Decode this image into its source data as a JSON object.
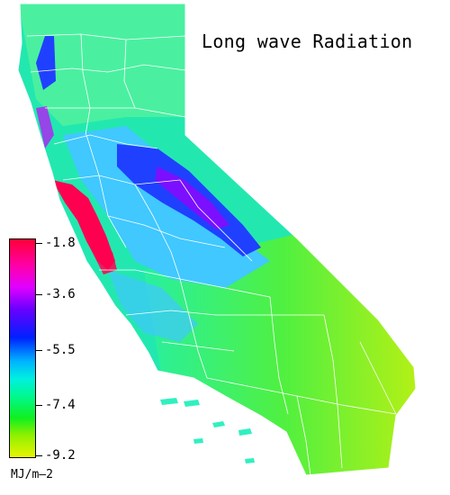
{
  "map": {
    "title": "Long wave Radiation",
    "region_shape": "california-state",
    "colors": {
      "dense_interior": "#22e8b0",
      "north_coast_range": "#4af0a0",
      "central_valley": "#40c8ff",
      "sierra_low": "#2040ff",
      "sierra_very_low": "#7a10ff",
      "bay_area": "#ff0050",
      "southern_desert": "#50f040",
      "far_south_east": "#b0f010",
      "county_lines": "#ffffff"
    }
  },
  "legend": {
    "ticks": [
      "-1.8",
      "-3.6",
      "-5.5",
      "-7.4",
      "-9.2"
    ],
    "units": "MJ/m—2"
  }
}
